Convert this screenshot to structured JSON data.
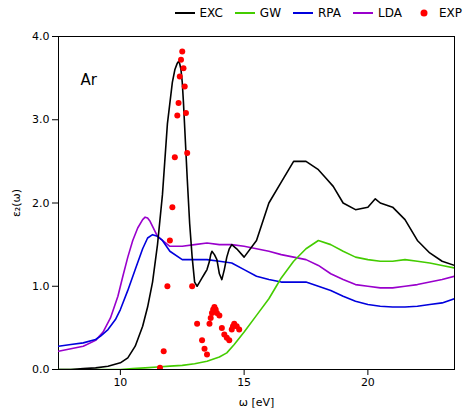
{
  "chart_data": {
    "type": "line",
    "annotation": "Ar",
    "xlabel": "ω [eV]",
    "ylabel": "ε₂(ω)",
    "xlim": [
      7.5,
      23.5
    ],
    "ylim": [
      0.0,
      4.0
    ],
    "xticks": [
      10,
      15,
      20
    ],
    "yticks": [
      {
        "value": 0,
        "label": "0.0"
      },
      {
        "value": 1,
        "label": "1.0"
      },
      {
        "value": 2,
        "label": "2.0"
      },
      {
        "value": 3,
        "label": "3.0"
      },
      {
        "value": 4,
        "label": "4.0"
      }
    ],
    "grid": false,
    "legend": "upper right",
    "series": [
      {
        "name": "EXC",
        "type": "line",
        "color": "black",
        "x": [
          7.5,
          8.0,
          8.5,
          9.0,
          9.5,
          10.0,
          10.3,
          10.6,
          10.9,
          11.1,
          11.3,
          11.5,
          11.7,
          11.9,
          12.0,
          12.1,
          12.2,
          12.3,
          12.35,
          12.4,
          12.45,
          12.5,
          12.55,
          12.6,
          12.65,
          12.7,
          12.8,
          12.9,
          13.0,
          13.1,
          13.2,
          13.3,
          13.4,
          13.5,
          13.6,
          13.65,
          13.7,
          13.75,
          13.8,
          13.85,
          13.9,
          14.0,
          14.1,
          14.2,
          14.3,
          14.4,
          14.5,
          14.7,
          15.0,
          15.5,
          16.0,
          16.5,
          17.0,
          17.5,
          18.0,
          18.3,
          18.6,
          19.0,
          19.5,
          20.0,
          20.3,
          20.5,
          21.0,
          21.5,
          22.0,
          22.5,
          23.0,
          23.5
        ],
        "values": [
          0.0,
          0.0,
          0.01,
          0.02,
          0.04,
          0.08,
          0.14,
          0.28,
          0.52,
          0.75,
          1.05,
          1.5,
          2.1,
          2.95,
          3.2,
          3.45,
          3.6,
          3.68,
          3.7,
          3.67,
          3.6,
          3.45,
          3.2,
          2.9,
          2.6,
          2.3,
          1.75,
          1.35,
          1.05,
          1.0,
          1.05,
          1.1,
          1.15,
          1.2,
          1.3,
          1.38,
          1.42,
          1.4,
          1.38,
          1.35,
          1.32,
          1.15,
          1.08,
          1.2,
          1.35,
          1.45,
          1.5,
          1.45,
          1.35,
          1.55,
          2.0,
          2.25,
          2.5,
          2.5,
          2.4,
          2.3,
          2.2,
          2.0,
          1.92,
          1.95,
          2.05,
          2.0,
          1.95,
          1.8,
          1.55,
          1.4,
          1.3,
          1.25
        ]
      },
      {
        "name": "GW",
        "type": "line",
        "color": "#44cc00",
        "x": [
          7.5,
          8.0,
          8.5,
          9.0,
          9.5,
          10.0,
          10.5,
          11.0,
          11.5,
          12.0,
          12.5,
          13.0,
          13.5,
          14.0,
          14.3,
          14.6,
          15.0,
          15.5,
          16.0,
          16.3,
          16.5,
          17.0,
          17.5,
          18.0,
          18.5,
          19.0,
          19.5,
          20.0,
          20.5,
          21.0,
          21.5,
          22.0,
          22.5,
          23.0,
          23.5
        ],
        "values": [
          0.0,
          0.0,
          0.0,
          0.0,
          0.0,
          0.0,
          0.01,
          0.02,
          0.03,
          0.04,
          0.05,
          0.07,
          0.1,
          0.15,
          0.2,
          0.3,
          0.45,
          0.65,
          0.85,
          1.0,
          1.1,
          1.3,
          1.45,
          1.55,
          1.5,
          1.42,
          1.35,
          1.32,
          1.3,
          1.3,
          1.32,
          1.3,
          1.28,
          1.25,
          1.22
        ]
      },
      {
        "name": "RPA",
        "type": "line",
        "color": "#0000dd",
        "x": [
          7.5,
          8.0,
          8.5,
          9.0,
          9.2,
          9.5,
          9.8,
          10.0,
          10.3,
          10.6,
          10.9,
          11.1,
          11.3,
          11.5,
          11.7,
          12.0,
          12.5,
          13.0,
          13.5,
          14.0,
          14.5,
          15.0,
          15.5,
          16.0,
          16.5,
          17.0,
          17.5,
          18.0,
          18.5,
          19.0,
          19.5,
          20.0,
          20.5,
          21.0,
          21.5,
          22.0,
          22.5,
          23.0,
          23.5
        ],
        "values": [
          0.28,
          0.3,
          0.32,
          0.36,
          0.4,
          0.48,
          0.6,
          0.72,
          0.95,
          1.2,
          1.45,
          1.58,
          1.62,
          1.6,
          1.55,
          1.42,
          1.32,
          1.32,
          1.32,
          1.3,
          1.28,
          1.2,
          1.12,
          1.08,
          1.05,
          1.05,
          1.05,
          1.0,
          0.95,
          0.88,
          0.82,
          0.78,
          0.76,
          0.75,
          0.75,
          0.76,
          0.78,
          0.8,
          0.85
        ]
      },
      {
        "name": "LDA",
        "type": "line",
        "color": "#9900cc",
        "x": [
          7.5,
          8.0,
          8.5,
          9.0,
          9.3,
          9.6,
          9.9,
          10.1,
          10.3,
          10.5,
          10.7,
          10.9,
          11.0,
          11.1,
          11.2,
          11.5,
          12.0,
          12.5,
          13.0,
          13.5,
          14.0,
          14.5,
          15.0,
          15.5,
          16.0,
          16.5,
          17.0,
          17.5,
          18.0,
          18.5,
          19.0,
          19.5,
          20.0,
          20.5,
          21.0,
          21.5,
          22.0,
          22.5,
          23.0,
          23.5
        ],
        "values": [
          0.22,
          0.25,
          0.28,
          0.35,
          0.45,
          0.62,
          0.88,
          1.12,
          1.35,
          1.55,
          1.7,
          1.8,
          1.83,
          1.82,
          1.78,
          1.6,
          1.48,
          1.48,
          1.5,
          1.52,
          1.5,
          1.5,
          1.48,
          1.45,
          1.42,
          1.38,
          1.35,
          1.32,
          1.25,
          1.15,
          1.08,
          1.02,
          1.0,
          0.98,
          0.98,
          1.0,
          1.02,
          1.05,
          1.08,
          1.12
        ]
      },
      {
        "name": "EXP",
        "type": "scatter",
        "color": "red",
        "marker": "circle",
        "x": [
          11.6,
          11.75,
          11.9,
          12.0,
          12.1,
          12.2,
          12.3,
          12.35,
          12.4,
          12.45,
          12.5,
          12.55,
          12.6,
          12.65,
          12.7,
          12.9,
          13.1,
          13.3,
          13.4,
          13.5,
          13.6,
          13.65,
          13.7,
          13.75,
          13.8,
          13.85,
          13.9,
          14.0,
          14.1,
          14.2,
          14.3,
          14.4,
          14.5,
          14.55,
          14.6,
          14.7,
          14.8
        ],
        "values": [
          0.02,
          0.22,
          1.0,
          1.55,
          1.95,
          2.55,
          3.05,
          3.2,
          3.52,
          3.72,
          3.82,
          3.62,
          3.4,
          3.08,
          2.6,
          1.0,
          0.55,
          0.35,
          0.25,
          0.18,
          0.55,
          0.62,
          0.68,
          0.72,
          0.75,
          0.72,
          0.68,
          0.65,
          0.5,
          0.42,
          0.38,
          0.35,
          0.48,
          0.52,
          0.55,
          0.52,
          0.48
        ]
      }
    ]
  }
}
